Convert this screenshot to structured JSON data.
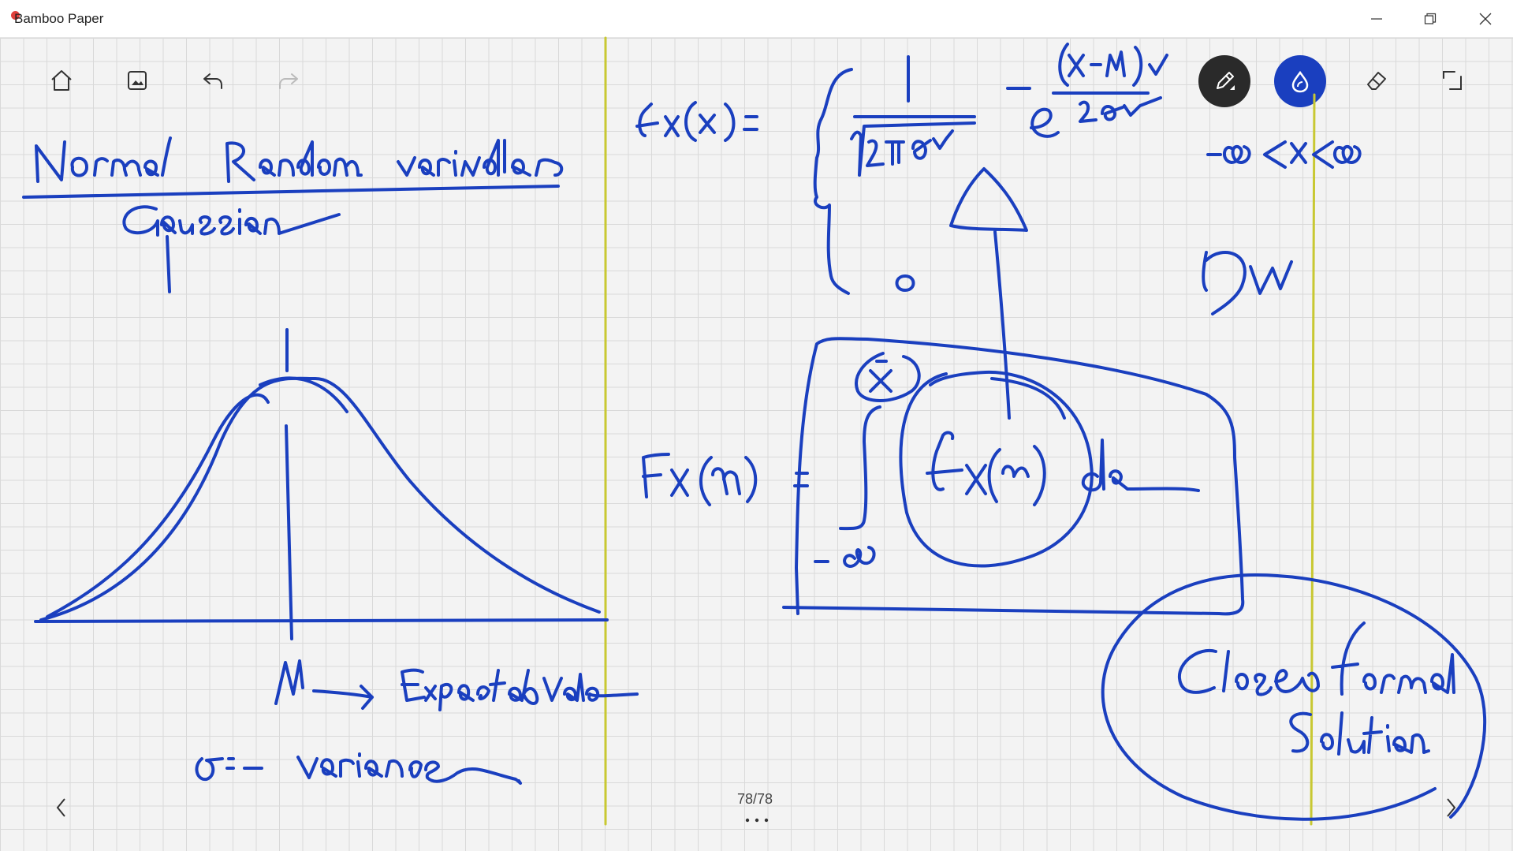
{
  "app": {
    "title": "Bamboo Paper"
  },
  "window_controls": {
    "minimize_icon": "minimize-icon",
    "restore_icon": "restore-icon",
    "close_icon": "close-icon"
  },
  "toolbar": {
    "left": [
      "home-icon",
      "insert-image-icon",
      "undo-icon",
      "redo-icon"
    ],
    "right": [
      "pen-tool-icon",
      "ink-color-icon",
      "eraser-icon",
      "crop-icon"
    ],
    "active_tool_color": "#2a2a2a",
    "ink_color": "#1a3fbf",
    "redo_enabled": false
  },
  "page": {
    "counter": "78/78",
    "prev_icon": "chevron-left-icon",
    "next_icon": "chevron-right-icon",
    "more_icon": "more-dots-icon"
  },
  "colors": {
    "grid_line": "#d9d9d9",
    "page_background": "#f3f3f3",
    "margin_line": "#c8c832"
  }
}
